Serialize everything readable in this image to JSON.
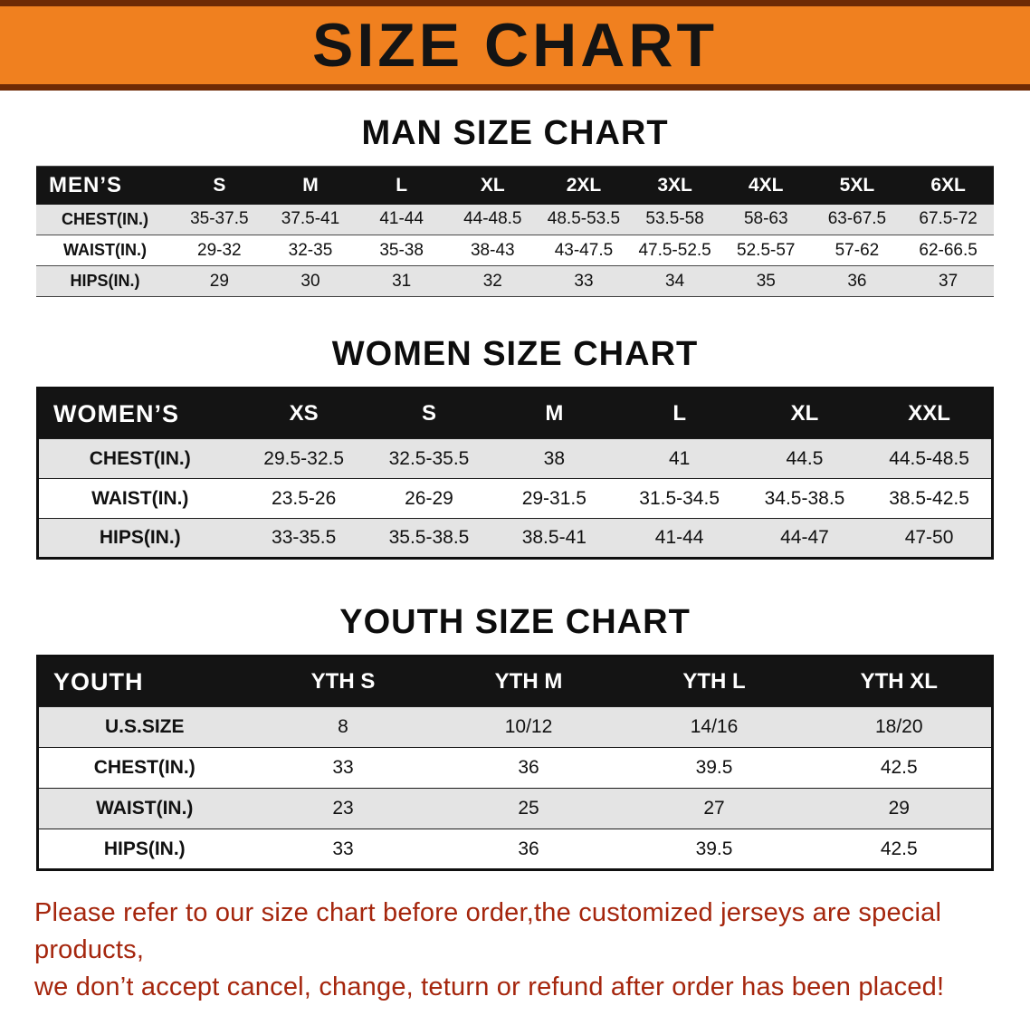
{
  "banner": {
    "title": "SIZE CHART"
  },
  "colors": {
    "banner_orange": "#f0801f",
    "banner_edge": "#6e2a05",
    "header_black": "#141414",
    "row_gray": "#e4e4e4",
    "footer_red": "#a5260d"
  },
  "men": {
    "heading": "MAN SIZE CHART",
    "header": [
      "MEN’S",
      "S",
      "M",
      "L",
      "XL",
      "2XL",
      "3XL",
      "4XL",
      "5XL",
      "6XL"
    ],
    "rows": [
      [
        "CHEST(IN.)",
        "35-37.5",
        "37.5-41",
        "41-44",
        "44-48.5",
        "48.5-53.5",
        "53.5-58",
        "58-63",
        "63-67.5",
        "67.5-72"
      ],
      [
        "WAIST(IN.)",
        "29-32",
        "32-35",
        "35-38",
        "38-43",
        "43-47.5",
        "47.5-52.5",
        "52.5-57",
        "57-62",
        "62-66.5"
      ],
      [
        "HIPS(IN.)",
        "29",
        "30",
        "31",
        "32",
        "33",
        "34",
        "35",
        "36",
        "37"
      ]
    ]
  },
  "women": {
    "heading": "WOMEN SIZE CHART",
    "header": [
      "WOMEN’S",
      "XS",
      "S",
      "M",
      "L",
      "XL",
      "XXL"
    ],
    "rows": [
      [
        "CHEST(IN.)",
        "29.5-32.5",
        "32.5-35.5",
        "38",
        "41",
        "44.5",
        "44.5-48.5"
      ],
      [
        "WAIST(IN.)",
        "23.5-26",
        "26-29",
        "29-31.5",
        "31.5-34.5",
        "34.5-38.5",
        "38.5-42.5"
      ],
      [
        "HIPS(IN.)",
        "33-35.5",
        "35.5-38.5",
        "38.5-41",
        "41-44",
        "44-47",
        "47-50"
      ]
    ]
  },
  "youth": {
    "heading": "YOUTH SIZE CHART",
    "header": [
      "YOUTH",
      "YTH S",
      "YTH M",
      "YTH L",
      "YTH XL"
    ],
    "rows": [
      [
        "U.S.SIZE",
        "8",
        "10/12",
        "14/16",
        "18/20"
      ],
      [
        "CHEST(IN.)",
        "33",
        "36",
        "39.5",
        "42.5"
      ],
      [
        "WAIST(IN.)",
        "23",
        "25",
        "27",
        "29"
      ],
      [
        "HIPS(IN.)",
        "33",
        "36",
        "39.5",
        "42.5"
      ]
    ]
  },
  "footer": {
    "line1": "Please refer to our size chart before order,the customized jerseys are special products,",
    "line2": "we don’t accept cancel, change, teturn or refund after order has been placed!"
  }
}
